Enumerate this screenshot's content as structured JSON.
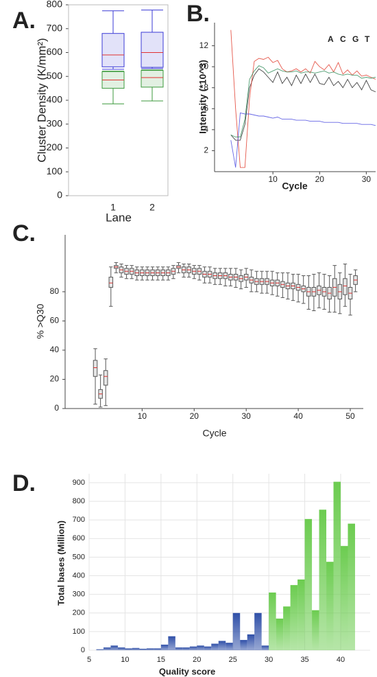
{
  "chart_data": [
    {
      "type": "box",
      "label": "A.",
      "ylabel": "Cluster Density (K/mm²)",
      "xlabel": "Lane",
      "categories": [
        "1",
        "2"
      ],
      "ylim": [
        0,
        800
      ],
      "yticks": [
        0,
        100,
        200,
        300,
        400,
        500,
        600,
        700,
        800
      ],
      "median_color": "#e03030",
      "boxes": [
        {
          "color": "#3a3ad6",
          "min": [
            530,
            533
          ],
          "q1": [
            540,
            538
          ],
          "median": [
            590,
            600
          ],
          "q3": [
            680,
            685
          ],
          "max": [
            775,
            778
          ]
        },
        {
          "color": "#3c9a3c",
          "min": [
            385,
            397
          ],
          "q1": [
            450,
            455
          ],
          "median": [
            485,
            495
          ],
          "q3": [
            520,
            525
          ],
          "max": [
            522,
            527
          ]
        }
      ]
    },
    {
      "type": "line",
      "label": "B.",
      "ylabel": "Intensity (*10^3)",
      "xlabel": "Cycle",
      "xlim": [
        -2.5,
        32
      ],
      "xticks": [
        10,
        20,
        30
      ],
      "ylim": [
        0,
        14.2
      ],
      "yticks": [
        2,
        4,
        6,
        8,
        10,
        12
      ],
      "x": [
        1,
        2,
        3,
        4,
        5,
        6,
        7,
        8,
        9,
        10,
        11,
        12,
        13,
        14,
        15,
        16,
        17,
        18,
        19,
        20,
        21,
        22,
        23,
        24,
        25,
        26,
        27,
        28,
        29,
        30,
        31,
        32
      ],
      "series": [
        {
          "name": "A",
          "color": "#222222",
          "values": [
            3.5,
            3.0,
            3.0,
            4.5,
            8.0,
            9.2,
            9.8,
            9.5,
            9.0,
            8.5,
            9.5,
            8.4,
            9.0,
            8.2,
            9.2,
            8.4,
            9.3,
            8.5,
            9.3,
            8.4,
            8.3,
            9.0,
            8.2,
            8.6,
            8.0,
            8.8,
            8.0,
            8.5,
            7.8,
            8.7,
            7.8,
            7.6
          ]
        },
        {
          "name": "C",
          "color": "#e03a2a",
          "values": [
            13.5,
            6,
            0.4,
            0.4,
            7,
            10.5,
            10.8,
            10.7,
            10.9,
            10.4,
            10.6,
            9.8,
            9.5,
            9.6,
            9.8,
            9.5,
            9.8,
            9.4,
            10.5,
            10,
            9.7,
            10.2,
            9.5,
            10.4,
            9.3,
            9.7,
            9.2,
            9.6,
            9.1,
            9.2,
            9.0,
            8.8
          ]
        },
        {
          "name": "G",
          "color": "#4a4ae0",
          "values": [
            3.0,
            0.4,
            5.6,
            5.5,
            5.5,
            5.4,
            5.3,
            5.3,
            5.2,
            5.1,
            5.2,
            5.0,
            5.0,
            5.0,
            4.9,
            4.9,
            4.9,
            4.8,
            4.8,
            4.8,
            4.7,
            4.7,
            4.7,
            4.7,
            4.6,
            4.6,
            4.6,
            4.6,
            4.5,
            4.5,
            4.5,
            4.4
          ]
        },
        {
          "name": "T",
          "color": "#2e8b57",
          "values": [
            3.5,
            3.3,
            3.3,
            5,
            8.8,
            9.6,
            10.1,
            9.9,
            9.4,
            9.6,
            9.8,
            9.6,
            9.5,
            9.5,
            9.6,
            9.4,
            9.5,
            9.5,
            9.4,
            9.5,
            9.6,
            9.4,
            9.5,
            9.3,
            9.2,
            9.3,
            9.2,
            9.2,
            8.9,
            9.0,
            8.9,
            9.0
          ]
        }
      ]
    },
    {
      "type": "box",
      "label": "C.",
      "ylabel": "% >Q30",
      "xlabel": "Cycle",
      "xlim": [
        -4.8,
        52.5
      ],
      "xticks": [
        10,
        20,
        30,
        40,
        50
      ],
      "ylim": [
        0,
        119
      ],
      "yticks": [
        0,
        20,
        40,
        60,
        80
      ],
      "median_color": "#e03030",
      "x": [
        1,
        2,
        3,
        4,
        5,
        6,
        7,
        8,
        9,
        10,
        11,
        12,
        13,
        14,
        15,
        16,
        17,
        18,
        19,
        20,
        21,
        22,
        23,
        24,
        25,
        26,
        27,
        28,
        29,
        30,
        31,
        32,
        33,
        34,
        35,
        36,
        37,
        38,
        39,
        40,
        41,
        42,
        43,
        44,
        45,
        46,
        47,
        48,
        49,
        50,
        51
      ],
      "boxes": [
        {
          "color": "#555555",
          "min": [
            3,
            1,
            2,
            70,
            93,
            90,
            89,
            89,
            88,
            88,
            88,
            88,
            88,
            88,
            88,
            89,
            93,
            90,
            90,
            89,
            88,
            86,
            86,
            85,
            85,
            84,
            84,
            83,
            82,
            83,
            80,
            80,
            79,
            79,
            78,
            77,
            76,
            75,
            74,
            73,
            72,
            68,
            67,
            69,
            68,
            66,
            66,
            65,
            70,
            64,
            80
          ],
          "q1": [
            22,
            7,
            16,
            83,
            96,
            93,
            92,
            92,
            91,
            91,
            91,
            91,
            91,
            91,
            91,
            92,
            96,
            93,
            93,
            92,
            92,
            90,
            90,
            89,
            89,
            89,
            88,
            88,
            87,
            88,
            86,
            85,
            85,
            85,
            84,
            84,
            83,
            82,
            82,
            81,
            80,
            77,
            77,
            78,
            77,
            75,
            77,
            75,
            78,
            75,
            85
          ],
          "median": [
            28,
            10,
            22,
            86,
            97,
            95,
            94,
            94,
            93,
            93,
            93,
            93,
            93,
            93,
            93,
            94,
            97,
            95,
            95,
            94,
            94,
            92,
            92,
            91,
            91,
            91,
            90,
            90,
            89,
            90,
            88,
            87,
            87,
            87,
            86,
            86,
            85,
            84,
            84,
            83,
            82,
            80,
            80,
            81,
            80,
            79,
            83,
            80,
            84,
            79,
            88
          ],
          "q3": [
            33,
            13,
            26,
            90,
            98,
            97,
            96,
            96,
            95,
            95,
            95,
            95,
            95,
            95,
            95,
            96,
            98,
            97,
            97,
            96,
            96,
            94,
            94,
            93,
            93,
            93,
            92,
            92,
            91,
            92,
            90,
            89,
            89,
            89,
            88,
            88,
            87,
            86,
            86,
            85,
            84,
            83,
            83,
            84,
            83,
            83,
            89,
            85,
            89,
            83,
            91
          ],
          "max": [
            41,
            23,
            34,
            97,
            100,
            99,
            98,
            98,
            97,
            97,
            97,
            97,
            97,
            97,
            97,
            98,
            100,
            99,
            99,
            98,
            98,
            97,
            97,
            96,
            96,
            96,
            96,
            96,
            95,
            96,
            95,
            94,
            94,
            94,
            94,
            93,
            93,
            93,
            92,
            92,
            91,
            91,
            92,
            93,
            92,
            91,
            98,
            93,
            99,
            92,
            95
          ]
        }
      ]
    },
    {
      "type": "hist",
      "label": "D.",
      "ylabel": "Total bases (Million)",
      "xlabel": "Quality score",
      "xlim": [
        5,
        44.1
      ],
      "xticks": [
        5,
        10,
        15,
        20,
        25,
        30,
        35,
        40
      ],
      "ylim": [
        0,
        948
      ],
      "yticks": [
        0,
        100,
        200,
        300,
        400,
        500,
        600,
        700,
        800,
        900
      ],
      "grid": true,
      "series": [
        {
          "color": "#3050a8",
          "bins": [
            6,
            7,
            8,
            9,
            10,
            11,
            12,
            13,
            14,
            15,
            16,
            17,
            18,
            19,
            20,
            21,
            22,
            23,
            24,
            25,
            26,
            27,
            28,
            29,
            30
          ],
          "values": [
            5,
            15,
            25,
            15,
            10,
            12,
            8,
            10,
            10,
            30,
            75,
            15,
            15,
            20,
            25,
            20,
            35,
            50,
            40,
            200,
            55,
            85,
            200,
            25
          ]
        },
        {
          "color": "#6ccc50",
          "bins": [
            30,
            31,
            32,
            33,
            34,
            35,
            36,
            37,
            38,
            39,
            40,
            41,
            42
          ],
          "values": [
            310,
            170,
            235,
            350,
            380,
            705,
            215,
            755,
            475,
            905,
            560,
            680
          ]
        }
      ]
    }
  ]
}
